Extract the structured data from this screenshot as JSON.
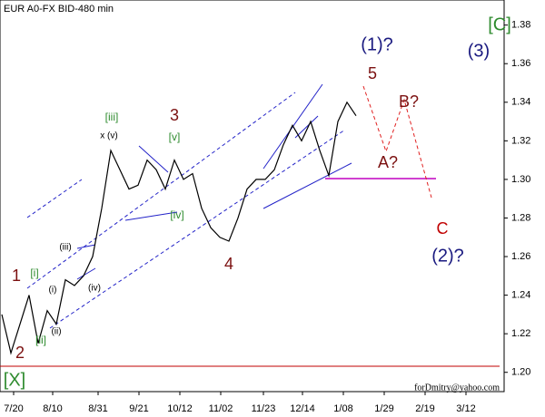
{
  "chart_data": {
    "type": "line",
    "title": "EUR A0-FX BID-480 min",
    "watermark": "forDmitry@yahoo.com",
    "xticks": [
      "7/20",
      "8/10",
      "8/31",
      "9/21",
      "10/12",
      "11/02",
      "11/23",
      "12/14",
      "1/08",
      "1/29",
      "2/19",
      "3/12"
    ],
    "series": [
      {
        "name": "EUR",
        "color": "#000000",
        "values": [
          1.23,
          1.21,
          1.225,
          1.24,
          1.215,
          1.232,
          1.225,
          1.248,
          1.245,
          1.25,
          1.26,
          1.285,
          1.315,
          1.305,
          1.295,
          1.297,
          1.31,
          1.305,
          1.295,
          1.31,
          1.3,
          1.303,
          1.285,
          1.275,
          1.27,
          1.268,
          1.28,
          1.295,
          1.3,
          1.3,
          1.305,
          1.318,
          1.328,
          1.32,
          1.33,
          1.315,
          1.302,
          1.33,
          1.34,
          1.333
        ]
      }
    ],
    "ylim": [
      1.19,
      1.393
    ],
    "yticks": [
      {
        "value": 1.2,
        "label": "1.20"
      },
      {
        "value": 1.22,
        "label": "1.22"
      },
      {
        "value": 1.24,
        "label": "1.24"
      },
      {
        "value": 1.26,
        "label": "1.26"
      },
      {
        "value": 1.28,
        "label": "1.28"
      },
      {
        "value": 1.3,
        "label": "1.30"
      },
      {
        "value": 1.32,
        "label": "1.32"
      },
      {
        "value": 1.34,
        "label": "1.34"
      },
      {
        "value": 1.36,
        "label": "1.36"
      },
      {
        "value": 1.38,
        "label": "1.38"
      }
    ],
    "annotations": [
      {
        "text": "1",
        "color": "#7b1010"
      },
      {
        "text": "2",
        "color": "#7b1010"
      },
      {
        "text": "3",
        "color": "#7b1010"
      },
      {
        "text": "4",
        "color": "#7b1010"
      },
      {
        "text": "5",
        "color": "#7b1010"
      },
      {
        "text": "[i]",
        "color": "#2e8b2e"
      },
      {
        "text": "[ii]",
        "color": "#2e8b2e"
      },
      {
        "text": "[iii]",
        "color": "#2e8b2e"
      },
      {
        "text": "[iv]",
        "color": "#2e8b2e"
      },
      {
        "text": "[v]",
        "color": "#2e8b2e"
      },
      {
        "text": "(i)",
        "color": "#000000"
      },
      {
        "text": "(ii)",
        "color": "#000000"
      },
      {
        "text": "(iii)",
        "color": "#000000"
      },
      {
        "text": "(iv)",
        "color": "#000000"
      },
      {
        "text": "x (v)",
        "color": "#000000"
      },
      {
        "text": "(1)?",
        "color": "#1a1a80"
      },
      {
        "text": "(3)",
        "color": "#1a1a80"
      },
      {
        "text": "[C]",
        "color": "#2e8b2e"
      },
      {
        "text": "[X]",
        "color": "#2e8b2e"
      },
      {
        "text": "A?",
        "color": "#7b1010"
      },
      {
        "text": "B?",
        "color": "#7b1010"
      },
      {
        "text": "C",
        "color": "#c00000"
      },
      {
        "text": "(2)?",
        "color": "#1a1a80"
      }
    ]
  }
}
